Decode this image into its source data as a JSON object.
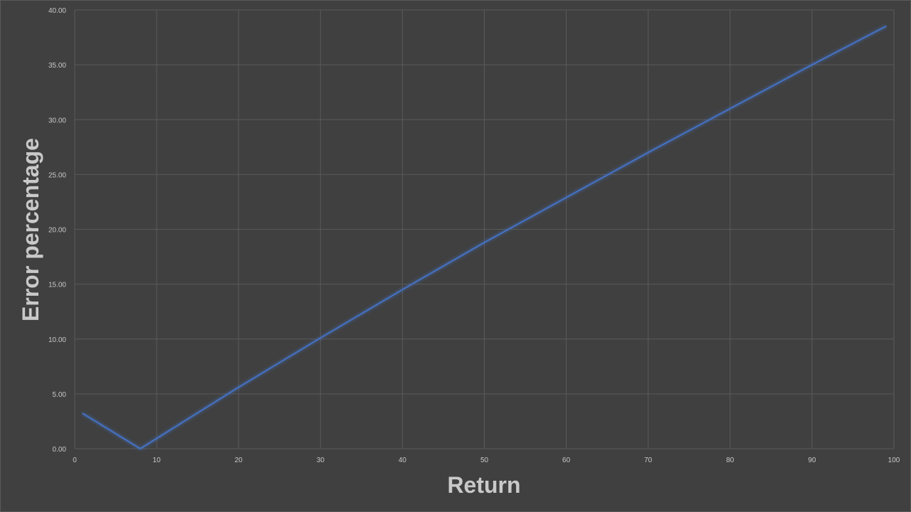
{
  "chart_data": {
    "type": "line",
    "title": "",
    "xlabel": "Return",
    "ylabel": "Error percentage",
    "xlim": [
      0,
      100
    ],
    "ylim": [
      0,
      40
    ],
    "x_ticks": [
      "0",
      "10",
      "20",
      "30",
      "40",
      "50",
      "60",
      "70",
      "80",
      "90",
      "100"
    ],
    "y_ticks": [
      "0.00",
      "5.00",
      "10.00",
      "15.00",
      "20.00",
      "25.00",
      "30.00",
      "35.00",
      "40.00"
    ],
    "grid": true,
    "legend": "none",
    "series": [
      {
        "color": "#4472c4",
        "x": [
          1,
          8,
          20,
          30,
          40,
          50,
          60,
          70,
          80,
          90,
          99
        ],
        "y": [
          3.2,
          0.0,
          5.6,
          10.1,
          14.5,
          18.8,
          22.9,
          27.0,
          31.0,
          35.0,
          38.5
        ]
      }
    ]
  },
  "colors": {
    "background": "#404040",
    "grid": "#5a5a5a",
    "line": "#4472c4",
    "text": "#c8c8c8"
  }
}
